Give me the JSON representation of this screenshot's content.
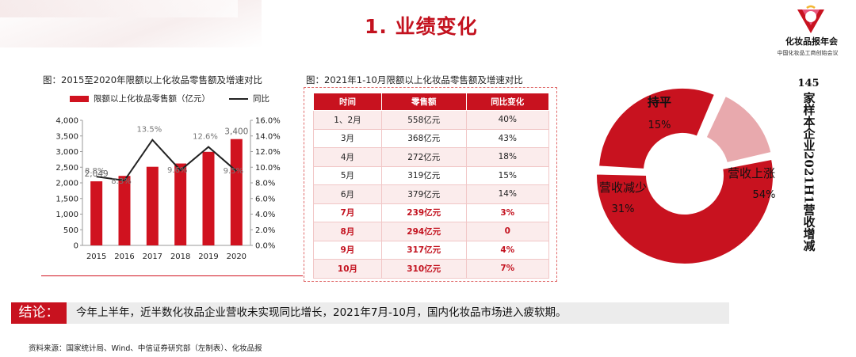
{
  "page_title": "1. 业绩变化",
  "brand": {
    "name": "化妆品报年会",
    "subtitle": "中国化妆品工商创始会议"
  },
  "chart1": {
    "caption": "图：2015至2020年限额以上化妆品零售额及增速对比",
    "legend": {
      "bar_label": "限额以上化妆品零售额（亿元）",
      "line_label": "同比"
    }
  },
  "chart2": {
    "caption": "图：2021年1-10月限额以上化妆品零售额及增速对比",
    "headers": [
      "时间",
      "零售额",
      "同比变化"
    ],
    "rows": [
      {
        "time": "1、2月",
        "sales": "558亿元",
        "yoy": "40%",
        "highlight": false
      },
      {
        "time": "3月",
        "sales": "368亿元",
        "yoy": "43%",
        "highlight": false
      },
      {
        "time": "4月",
        "sales": "272亿元",
        "yoy": "18%",
        "highlight": false
      },
      {
        "time": "5月",
        "sales": "319亿元",
        "yoy": "15%",
        "highlight": false
      },
      {
        "time": "6月",
        "sales": "379亿元",
        "yoy": "14%",
        "highlight": false
      },
      {
        "time": "7月",
        "sales": "239亿元",
        "yoy": "3%",
        "highlight": true
      },
      {
        "time": "8月",
        "sales": "294亿元",
        "yoy": "0",
        "highlight": true
      },
      {
        "time": "9月",
        "sales": "317亿元",
        "yoy": "4%",
        "highlight": true
      },
      {
        "time": "10月",
        "sales": "310亿元",
        "yoy": "7%",
        "highlight": true
      }
    ]
  },
  "side_title": {
    "number": "145",
    "text": "家样本企业2021H1营收增减"
  },
  "conclusion": {
    "tag": "结论：",
    "text": "今年上半年，近半数化妆品企业营收未实现同比增长，2021年7月-10月，国内化妆品市场进入疲软期。"
  },
  "source": "资料来源：国家统计局、Wind、中信证券研究部（左制表）、化妆品报",
  "colors": {
    "accent": "#c8121f",
    "bar": "#d0121f",
    "line": "#222222",
    "pie_light": "#e8a9ad"
  },
  "chart_data": [
    {
      "type": "bar",
      "categories": [
        "2015",
        "2016",
        "2017",
        "2018",
        "2019",
        "2020"
      ],
      "series": [
        {
          "name": "限额以上化妆品零售额（亿元）",
          "values": [
            2049,
            2222,
            2514,
            2619,
            2992,
            3400
          ]
        },
        {
          "name": "同比",
          "values": [
            8.8,
            8.3,
            13.5,
            9.6,
            12.6,
            9.5
          ],
          "axis": "right",
          "render": "line"
        }
      ],
      "data_labels": {
        "bars": {
          "2015": "2,049",
          "2020": "3,400"
        },
        "line": [
          "8.8%",
          "8.3%",
          "13.5%",
          "9.6%",
          "12.6%",
          "9.5%"
        ]
      },
      "ylim": [
        0,
        4000
      ],
      "yticks": [
        "0",
        "500",
        "1,000",
        "1,500",
        "2,000",
        "2,500",
        "3,000",
        "3,500",
        "4,000"
      ],
      "y2lim": [
        0,
        16
      ],
      "y2ticks": [
        "0.0%",
        "2.0%",
        "4.0%",
        "6.0%",
        "8.0%",
        "10.0%",
        "12.0%",
        "14.0%",
        "16.0%"
      ],
      "grid": false,
      "legend": "top"
    },
    {
      "type": "pie",
      "style": "donut",
      "labels": [
        "营收上涨",
        "营收减少",
        "持平"
      ],
      "values": [
        54,
        31,
        15
      ],
      "value_labels": [
        "54%",
        "31%",
        "15%"
      ],
      "colors": [
        "#c8121f",
        "#c8121f",
        "#e8a9ad"
      ]
    }
  ]
}
